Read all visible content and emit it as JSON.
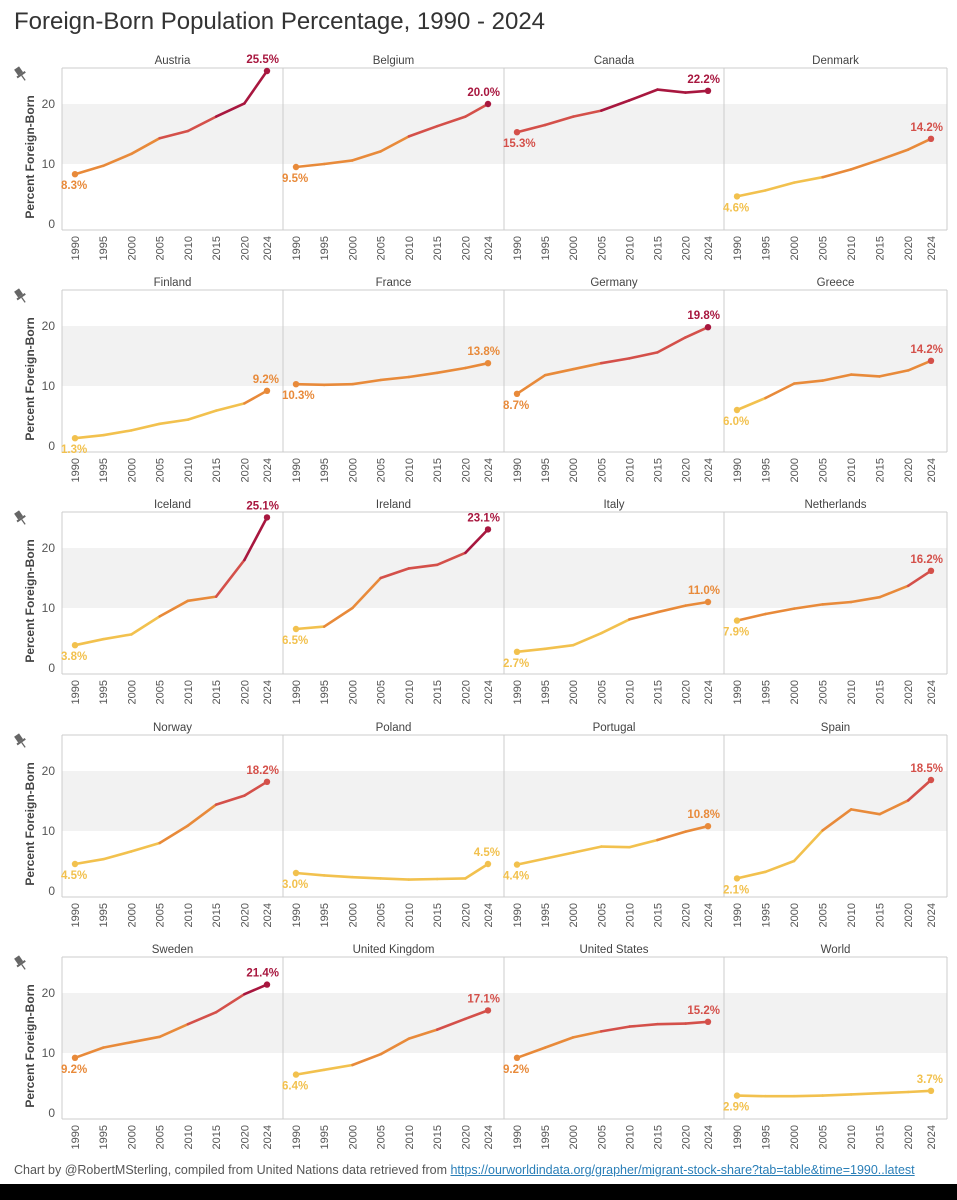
{
  "title": "Foreign-Born  Population Percentage, 1990 - 2024",
  "footer": {
    "text": "Chart by @RobertMSterling, compiled from United Nations data retrieved from ",
    "link": "https://ourworldindata.org/grapher/migrant-stock-share?tab=table&time=1990..latest"
  },
  "colors": {
    "low": "#f2c14e",
    "mid": "#e88a3a",
    "high": "#d4504a",
    "max": "#a8173f",
    "band": "#f2f2f2",
    "axis": "#cccccc",
    "pin": "#666666"
  },
  "chart_data": {
    "type": "line",
    "ylabel": "Percent Foreign-Born",
    "ylim": [
      0,
      26
    ],
    "yticks": [
      0,
      10,
      20
    ],
    "band": [
      10,
      20
    ],
    "x": [
      1990,
      1995,
      2000,
      2005,
      2010,
      2015,
      2020,
      2024
    ],
    "xtick_labels": [
      "1990",
      "1995",
      "2000",
      "2005",
      "2010",
      "2015",
      "2020",
      "2024"
    ],
    "layout": "5x4 small multiples",
    "series": [
      {
        "name": "Austria",
        "values": [
          8.3,
          9.7,
          11.7,
          14.3,
          15.5,
          17.9,
          20.1,
          25.5
        ],
        "start_label": "8.3%",
        "end_label": "25.5%"
      },
      {
        "name": "Belgium",
        "values": [
          9.5,
          10.0,
          10.6,
          12.1,
          14.6,
          16.3,
          17.9,
          20.0
        ],
        "start_label": "9.5%",
        "end_label": "20.0%"
      },
      {
        "name": "Canada",
        "values": [
          15.3,
          16.5,
          17.9,
          18.9,
          20.6,
          22.4,
          21.9,
          22.2
        ],
        "start_label": "15.3%",
        "end_label": "22.2%"
      },
      {
        "name": "Denmark",
        "values": [
          4.6,
          5.6,
          6.9,
          7.8,
          9.1,
          10.7,
          12.4,
          14.2
        ],
        "start_label": "4.6%",
        "end_label": "14.2%"
      },
      {
        "name": "Finland",
        "values": [
          1.3,
          1.8,
          2.6,
          3.7,
          4.4,
          5.9,
          7.1,
          9.2
        ],
        "start_label": "1.3%",
        "end_label": "9.2%"
      },
      {
        "name": "France",
        "values": [
          10.3,
          10.2,
          10.3,
          11.0,
          11.5,
          12.2,
          13.0,
          13.8
        ],
        "start_label": "10.3%",
        "end_label": "13.8%"
      },
      {
        "name": "Germany",
        "values": [
          8.7,
          11.8,
          12.8,
          13.8,
          14.6,
          15.6,
          18.1,
          19.8
        ],
        "start_label": "8.7%",
        "end_label": "19.8%"
      },
      {
        "name": "Greece",
        "values": [
          6.0,
          8.0,
          10.4,
          10.9,
          11.9,
          11.6,
          12.6,
          14.2
        ],
        "start_label": "6.0%",
        "end_label": "14.2%"
      },
      {
        "name": "Iceland",
        "values": [
          3.8,
          4.8,
          5.6,
          8.6,
          11.2,
          11.9,
          18.0,
          25.1
        ],
        "start_label": "3.8%",
        "end_label": "25.1%"
      },
      {
        "name": "Ireland",
        "values": [
          6.5,
          6.9,
          10.0,
          15.0,
          16.6,
          17.2,
          19.2,
          23.1
        ],
        "start_label": "6.5%",
        "end_label": "23.1%"
      },
      {
        "name": "Italy",
        "values": [
          2.7,
          3.2,
          3.8,
          5.8,
          8.1,
          9.3,
          10.4,
          11.0
        ],
        "start_label": "2.7%",
        "end_label": "11.0%"
      },
      {
        "name": "Netherlands",
        "values": [
          7.9,
          9.0,
          9.9,
          10.6,
          11.0,
          11.8,
          13.7,
          16.2
        ],
        "start_label": "7.9%",
        "end_label": "16.2%"
      },
      {
        "name": "Norway",
        "values": [
          4.5,
          5.3,
          6.6,
          8.0,
          10.9,
          14.4,
          15.9,
          18.2
        ],
        "start_label": "4.5%",
        "end_label": "18.2%"
      },
      {
        "name": "Poland",
        "values": [
          3.0,
          2.6,
          2.3,
          2.1,
          1.9,
          2.0,
          2.1,
          4.5
        ],
        "start_label": "3.0%",
        "end_label": "4.5%"
      },
      {
        "name": "Portugal",
        "values": [
          4.4,
          5.4,
          6.4,
          7.4,
          7.3,
          8.5,
          9.9,
          10.8
        ],
        "start_label": "4.4%",
        "end_label": "10.8%"
      },
      {
        "name": "Spain",
        "values": [
          2.1,
          3.2,
          5.0,
          10.1,
          13.6,
          12.8,
          15.1,
          18.5
        ],
        "start_label": "2.1%",
        "end_label": "18.5%"
      },
      {
        "name": "Sweden",
        "values": [
          9.2,
          10.9,
          11.8,
          12.7,
          14.8,
          16.8,
          19.8,
          21.4
        ],
        "start_label": "9.2%",
        "end_label": "21.4%"
      },
      {
        "name": "United Kingdom",
        "values": [
          6.4,
          7.2,
          8.0,
          9.8,
          12.4,
          13.9,
          15.7,
          17.1
        ],
        "start_label": "6.4%",
        "end_label": "17.1%"
      },
      {
        "name": "United States",
        "values": [
          9.2,
          10.9,
          12.6,
          13.6,
          14.4,
          14.8,
          14.9,
          15.2
        ],
        "start_label": "9.2%",
        "end_label": "15.2%"
      },
      {
        "name": "World",
        "values": [
          2.9,
          2.8,
          2.8,
          2.9,
          3.1,
          3.3,
          3.5,
          3.7
        ],
        "start_label": "2.9%",
        "end_label": "3.7%"
      }
    ]
  }
}
